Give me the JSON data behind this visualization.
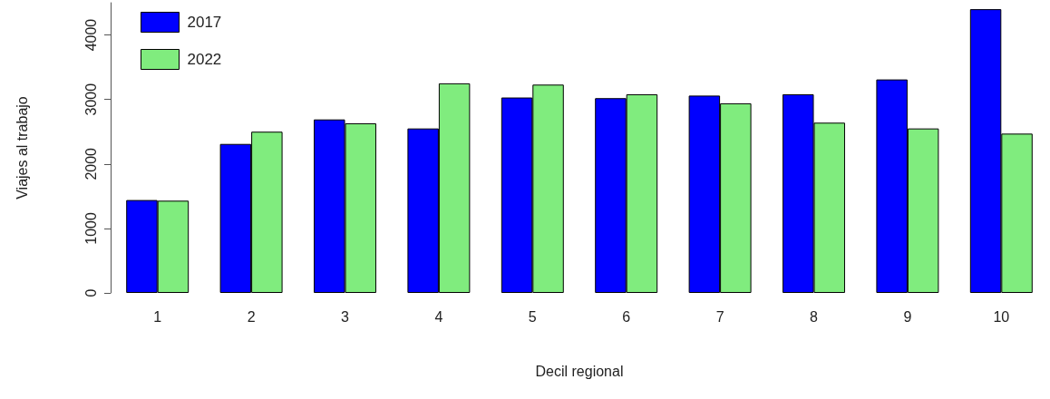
{
  "chart_data": {
    "type": "bar",
    "xlabel": "Decil regional",
    "ylabel": "Viajes al trabajo",
    "categories": [
      "1",
      "2",
      "3",
      "4",
      "5",
      "6",
      "7",
      "8",
      "9",
      "10"
    ],
    "series": [
      {
        "name": "2017",
        "color": "#0000ff",
        "values": [
          1440,
          2310,
          2690,
          2550,
          3030,
          3020,
          3060,
          3080,
          3310,
          4400
        ]
      },
      {
        "name": "2022",
        "color": "#80ec7e",
        "values": [
          1430,
          2500,
          2630,
          3250,
          3230,
          3080,
          2940,
          2640,
          2550,
          2470
        ]
      }
    ],
    "ylim": [
      0,
      4500
    ],
    "yticks": [
      0,
      1000,
      2000,
      3000,
      4000
    ],
    "grid": false,
    "legend": "top left"
  }
}
